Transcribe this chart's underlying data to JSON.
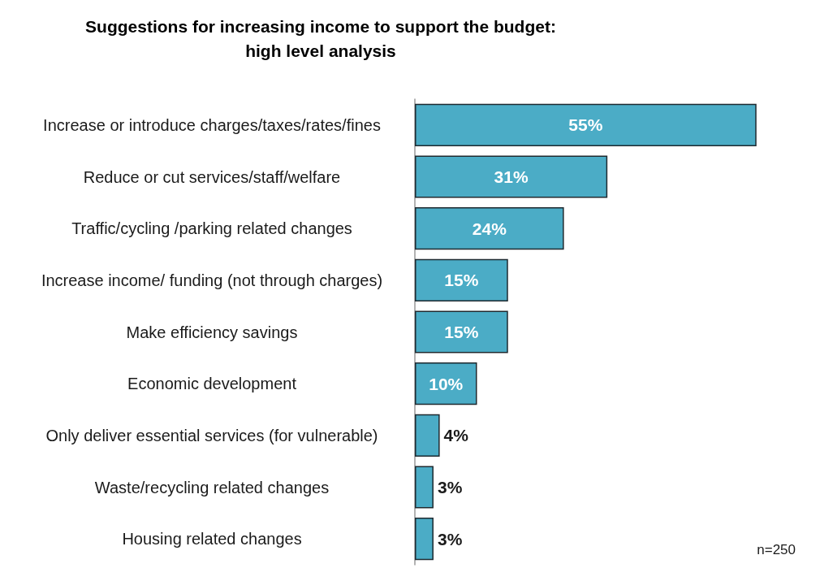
{
  "chart_data": {
    "type": "bar",
    "orientation": "horizontal",
    "title": "Suggestions for increasing income to support the budget:\nhigh level analysis",
    "categories": [
      "Increase or introduce charges/taxes/rates/fines",
      "Reduce or cut services/staff/welfare",
      "Traffic/cycling /parking related changes",
      "Increase income/ funding (not through charges)",
      "Make efficiency savings",
      "Economic development",
      "Only deliver essential services (for vulnerable)",
      "Waste/recycling related changes",
      "Housing related changes"
    ],
    "values": [
      55,
      31,
      24,
      15,
      15,
      10,
      4,
      3,
      3
    ],
    "value_labels": [
      "55%",
      "31%",
      "24%",
      "15%",
      "15%",
      "10%",
      "4%",
      "3%",
      "3%"
    ],
    "color": "#4bacc6",
    "annotations": [
      "n=250"
    ]
  }
}
